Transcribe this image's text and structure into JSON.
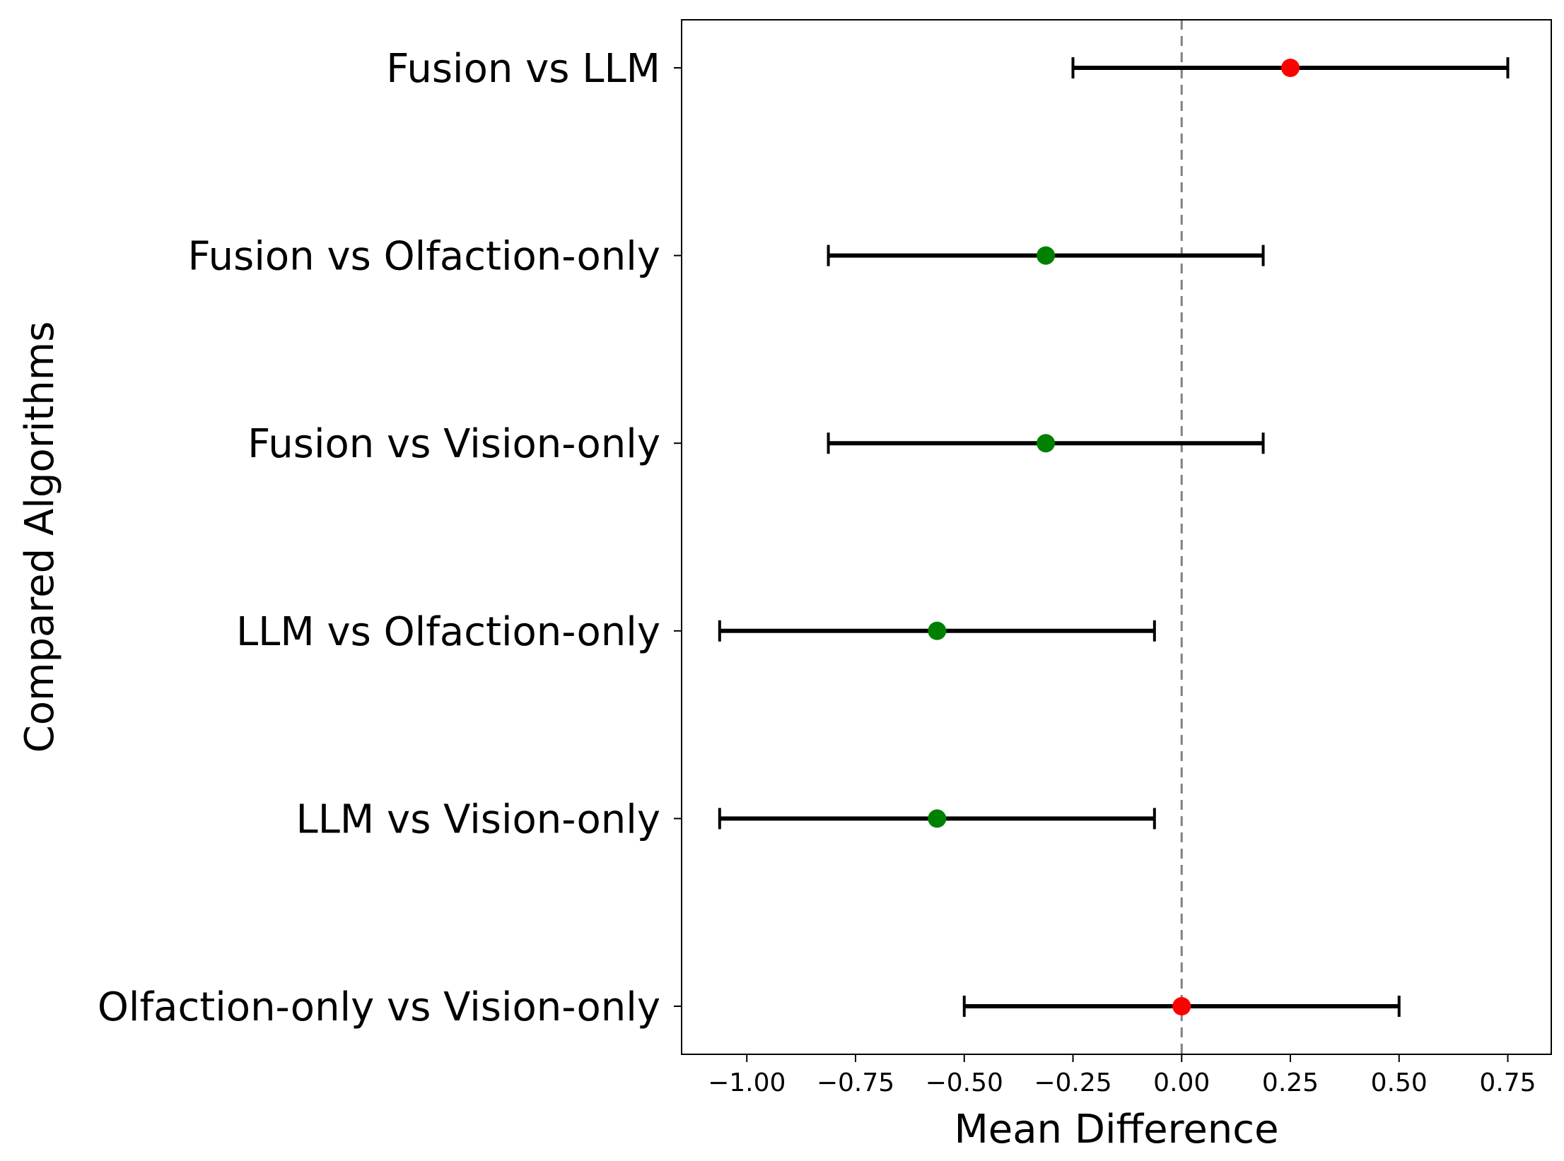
{
  "chart_data": {
    "type": "errorbar",
    "title": "",
    "xlabel": "Mean Difference",
    "ylabel": "Compared Algorithms",
    "xlim": [
      -1.15,
      0.85
    ],
    "xticks": [
      -1.0,
      -0.75,
      -0.5,
      -0.25,
      0.0,
      0.25,
      0.5,
      0.75
    ],
    "xtick_labels": [
      "−1.00",
      "−0.75",
      "−0.50",
      "−0.25",
      "0.00",
      "0.25",
      "0.50",
      "0.75"
    ],
    "reference_line": {
      "x": 0,
      "style": "dashed",
      "color": "#808080"
    },
    "grid": false,
    "colors": {
      "significant": "#008000",
      "not_significant": "#ff0000",
      "bar": "#000000"
    },
    "comparisons": [
      {
        "label": "Fusion vs LLM",
        "mean": 0.25,
        "lower": -0.25,
        "upper": 0.75,
        "color": "#ff0000"
      },
      {
        "label": "Fusion vs Olfaction-only",
        "mean": -0.3125,
        "lower": -0.8125,
        "upper": 0.1875,
        "color": "#008000"
      },
      {
        "label": "Fusion vs Vision-only",
        "mean": -0.3125,
        "lower": -0.8125,
        "upper": 0.1875,
        "color": "#008000"
      },
      {
        "label": "LLM vs Olfaction-only",
        "mean": -0.5625,
        "lower": -1.0625,
        "upper": -0.0625,
        "color": "#008000"
      },
      {
        "label": "LLM vs Vision-only",
        "mean": -0.5625,
        "lower": -1.0625,
        "upper": -0.0625,
        "color": "#008000"
      },
      {
        "label": "Olfaction-only vs Vision-only",
        "mean": 0.0,
        "lower": -0.5,
        "upper": 0.5,
        "color": "#ff0000"
      }
    ]
  }
}
